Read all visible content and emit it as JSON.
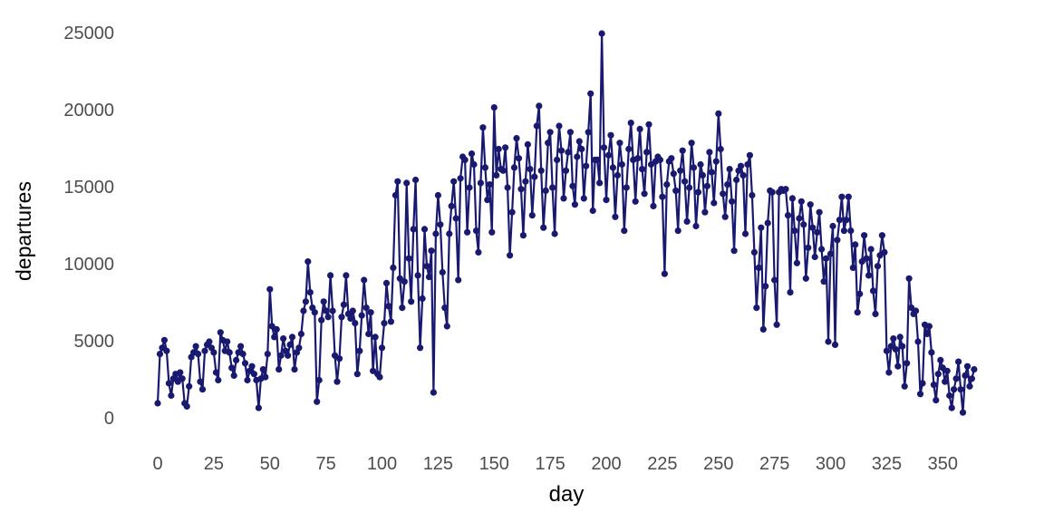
{
  "chart_data": {
    "type": "line",
    "title": "",
    "xlabel": "day",
    "ylabel": "departures",
    "xlim": [
      0,
      365
    ],
    "ylim": [
      0,
      25000
    ],
    "x_ticks": [
      0,
      25,
      50,
      75,
      100,
      125,
      150,
      175,
      200,
      225,
      250,
      275,
      300,
      325,
      350
    ],
    "y_ticks": [
      0,
      5000,
      10000,
      15000,
      20000,
      25000
    ],
    "grid": false,
    "legend_position": "none",
    "marker": "circle",
    "line_color": "#191970",
    "marker_color": "#191970",
    "tick_label_color": "#4d4d4d",
    "axis_title_color": "#000000",
    "background_color": "#ffffff",
    "series": [
      {
        "name": "departures",
        "x_start": 0,
        "x_step": 1,
        "values": [
          1000,
          4200,
          4600,
          5100,
          4400,
          2300,
          1500,
          2600,
          2900,
          2400,
          3000,
          2600,
          1000,
          800,
          2100,
          4000,
          4300,
          4700,
          4200,
          2400,
          1900,
          4400,
          4800,
          5000,
          4600,
          4300,
          3000,
          2500,
          5600,
          5100,
          4400,
          5000,
          4300,
          3300,
          2800,
          3800,
          4300,
          4700,
          4200,
          3600,
          2500,
          3100,
          3400,
          2900,
          2500,
          700,
          2600,
          3200,
          2700,
          4200,
          8400,
          6000,
          5300,
          5800,
          3200,
          4100,
          5200,
          4400,
          4100,
          4800,
          5300,
          3200,
          4300,
          4600,
          5500,
          7000,
          7600,
          10200,
          8200,
          7200,
          6900,
          1100,
          2500,
          6400,
          7600,
          7000,
          6600,
          9300,
          7000,
          4100,
          2400,
          3900,
          6600,
          7400,
          9300,
          6800,
          6500,
          7000,
          6200,
          2900,
          4400,
          6700,
          9000,
          7200,
          5500,
          6900,
          3100,
          5300,
          2900,
          2700,
          4600,
          6200,
          8800,
          7300,
          6300,
          9800,
          14500,
          15400,
          9100,
          7200,
          8900,
          15300,
          10400,
          7600,
          12300,
          15500,
          9300,
          4600,
          7800,
          12300,
          9900,
          9200,
          10900,
          1700,
          12000,
          14500,
          12600,
          9500,
          7200,
          6000,
          12000,
          13800,
          15400,
          13000,
          9000,
          15600,
          17000,
          16800,
          12100,
          15000,
          17200,
          16500,
          12200,
          10800,
          15300,
          18900,
          16300,
          14200,
          15200,
          12100,
          20200,
          15800,
          17500,
          16200,
          16100,
          17600,
          15000,
          10600,
          13400,
          16300,
          18200,
          16900,
          14900,
          11900,
          15400,
          17800,
          16200,
          13200,
          15700,
          19000,
          20300,
          16100,
          12400,
          14800,
          17900,
          18600,
          15000,
          12000,
          16800,
          19000,
          17400,
          14300,
          16100,
          17300,
          18600,
          15100,
          13900,
          17000,
          18000,
          17500,
          14300,
          16400,
          18600,
          21100,
          13500,
          16800,
          16800,
          15300,
          25000,
          17600,
          14200,
          17100,
          18400,
          16300,
          13100,
          15800,
          17900,
          16500,
          12200,
          15000,
          17500,
          19200,
          16800,
          14100,
          16900,
          18800,
          16200,
          14600,
          17300,
          19100,
          16500,
          13800,
          16700,
          17000,
          16800,
          14400,
          9400,
          15200,
          16700,
          16900,
          15900,
          14800,
          12200,
          16100,
          17400,
          15400,
          12800,
          15000,
          17900,
          16300,
          12500,
          14700,
          16500,
          15800,
          13400,
          15100,
          17300,
          16000,
          14000,
          16700,
          19800,
          17500,
          14600,
          13100,
          15200,
          16200,
          14100,
          10900,
          15500,
          16100,
          16400,
          15800,
          12000,
          16500,
          17100,
          14500,
          10800,
          7200,
          9800,
          12400,
          5800,
          8600,
          12700,
          14800,
          14700,
          9000,
          6100,
          14700,
          14900,
          14800,
          14900,
          13200,
          8200,
          14300,
          12200,
          10100,
          13000,
          14100,
          12600,
          9100,
          11100,
          13900,
          12400,
          10500,
          12100,
          13400,
          11000,
          8900,
          10400,
          5000,
          10700,
          12500,
          4800,
          11600,
          12900,
          14400,
          12200,
          12900,
          14400,
          12200,
          9800,
          11300,
          6900,
          8100,
          10200,
          11900,
          10400,
          9300,
          11000,
          8300,
          6800,
          9900,
          10600,
          11900,
          10800,
          4400,
          3000,
          4700,
          5200,
          4500,
          3400,
          5300,
          4700,
          2100,
          3600,
          9100,
          7200,
          6800,
          7000,
          5000,
          1600,
          2300,
          6100,
          5500,
          6000,
          4300,
          2200,
          1200,
          2900,
          3800,
          3300,
          2400,
          3100,
          1500,
          700,
          1900,
          2600,
          3700,
          1900,
          400,
          2800,
          3400,
          2100,
          2600,
          3200
        ]
      }
    ]
  }
}
